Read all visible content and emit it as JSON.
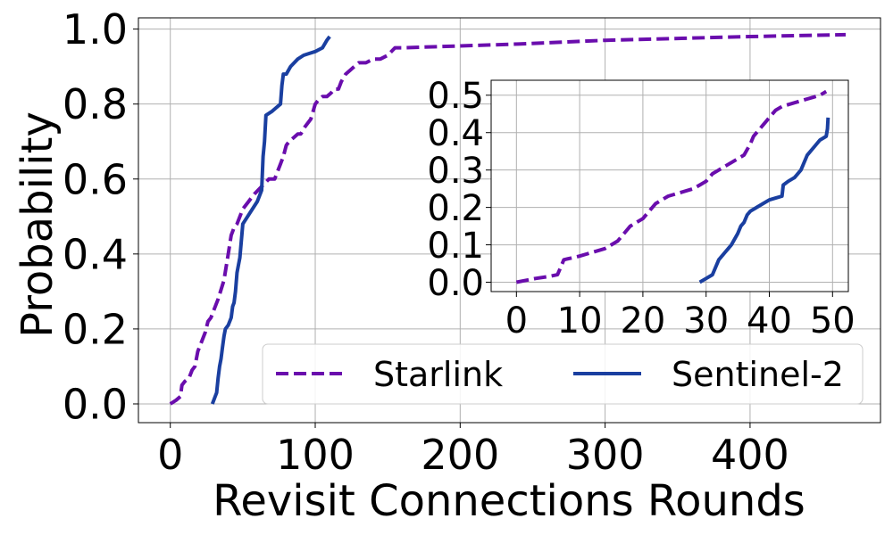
{
  "chart_data": [
    {
      "type": "line",
      "role": "main",
      "xlabel": "Revisit Connections Rounds",
      "ylabel": "Probability",
      "xlim": [
        -22,
        490
      ],
      "ylim": [
        -0.05,
        1.03
      ],
      "xticks": [
        0,
        100,
        200,
        300,
        400
      ],
      "yticks": [
        0.0,
        0.2,
        0.4,
        0.6,
        0.8,
        1.0
      ],
      "xtick_labels": [
        "0",
        "100",
        "200",
        "300",
        "400"
      ],
      "ytick_labels": [
        "0.0",
        "0.2",
        "0.4",
        "0.6",
        "0.8",
        "1.0"
      ],
      "grid": true,
      "legend_position": "lower-right",
      "series": [
        {
          "name": "Starlink",
          "color": "#6a0dad",
          "style": "dashed",
          "x": [
            0,
            4,
            7,
            8,
            10,
            13,
            15,
            17,
            19,
            21,
            24,
            26,
            28,
            30,
            33,
            37,
            40,
            42,
            44,
            46,
            50,
            54,
            58,
            63,
            68,
            72,
            74,
            76,
            78,
            80,
            82,
            85,
            88,
            90,
            93,
            97,
            100,
            102,
            105,
            108,
            111,
            113,
            116,
            118,
            121,
            124,
            127,
            130,
            135,
            140,
            145,
            150,
            155,
            160,
            200,
            240,
            300,
            400,
            466
          ],
          "y": [
            0.0,
            0.01,
            0.02,
            0.05,
            0.06,
            0.07,
            0.09,
            0.1,
            0.14,
            0.16,
            0.19,
            0.22,
            0.23,
            0.25,
            0.28,
            0.33,
            0.4,
            0.45,
            0.47,
            0.48,
            0.52,
            0.54,
            0.56,
            0.58,
            0.6,
            0.6,
            0.62,
            0.64,
            0.66,
            0.69,
            0.7,
            0.71,
            0.72,
            0.72,
            0.74,
            0.76,
            0.8,
            0.81,
            0.82,
            0.82,
            0.83,
            0.84,
            0.84,
            0.86,
            0.88,
            0.89,
            0.9,
            0.91,
            0.91,
            0.92,
            0.92,
            0.93,
            0.95,
            0.95,
            0.955,
            0.96,
            0.97,
            0.98,
            0.985
          ]
        },
        {
          "name": "Sentinel-2",
          "color": "#1a3fa0",
          "style": "solid",
          "x": [
            29,
            31,
            32,
            33,
            34,
            35,
            36,
            37,
            38,
            40,
            42,
            43,
            44,
            45,
            46,
            47,
            48,
            50,
            55,
            60,
            63,
            64,
            65,
            66,
            70,
            73,
            76,
            77,
            78,
            80,
            83,
            88,
            92,
            96,
            100,
            105,
            108,
            110
          ],
          "y": [
            0.0,
            0.02,
            0.03,
            0.07,
            0.1,
            0.12,
            0.15,
            0.18,
            0.2,
            0.21,
            0.23,
            0.26,
            0.27,
            0.3,
            0.35,
            0.37,
            0.39,
            0.48,
            0.51,
            0.54,
            0.57,
            0.66,
            0.7,
            0.77,
            0.78,
            0.79,
            0.8,
            0.85,
            0.88,
            0.88,
            0.9,
            0.92,
            0.93,
            0.935,
            0.94,
            0.95,
            0.97,
            0.98
          ]
        }
      ]
    },
    {
      "type": "line",
      "role": "inset",
      "xlim": [
        -4,
        52.5
      ],
      "ylim": [
        -0.025,
        0.54
      ],
      "xticks": [
        0,
        10,
        20,
        30,
        40,
        50
      ],
      "yticks": [
        0.0,
        0.1,
        0.2,
        0.3,
        0.4,
        0.5
      ],
      "xtick_labels": [
        "0",
        "10",
        "20",
        "30",
        "40",
        "50"
      ],
      "ytick_labels": [
        "0.0",
        "0.1",
        "0.2",
        "0.3",
        "0.4",
        "0.5"
      ],
      "grid": true,
      "series": [
        {
          "color": "#6a0dad",
          "style": "dashed",
          "x": [
            0,
            3,
            5,
            6.5,
            7,
            7.5,
            10,
            12,
            14,
            15,
            16,
            17,
            18,
            19,
            20,
            21,
            22,
            23,
            24,
            26,
            27,
            28,
            29,
            30,
            30.5,
            31,
            32,
            33,
            34,
            35,
            36,
            37,
            37.5,
            38,
            39,
            40,
            41,
            42,
            43,
            44,
            45,
            46,
            47,
            48,
            48.5,
            49
          ],
          "y": [
            0.0,
            0.01,
            0.015,
            0.02,
            0.04,
            0.06,
            0.07,
            0.08,
            0.09,
            0.1,
            0.11,
            0.13,
            0.15,
            0.16,
            0.17,
            0.19,
            0.21,
            0.22,
            0.23,
            0.24,
            0.245,
            0.25,
            0.26,
            0.27,
            0.28,
            0.29,
            0.3,
            0.31,
            0.32,
            0.33,
            0.34,
            0.37,
            0.39,
            0.4,
            0.42,
            0.44,
            0.46,
            0.47,
            0.475,
            0.48,
            0.485,
            0.49,
            0.495,
            0.5,
            0.505,
            0.51
          ]
        },
        {
          "color": "#1a3fa0",
          "style": "solid",
          "x": [
            29,
            30,
            31,
            32,
            32.5,
            33,
            33.5,
            34,
            35,
            35.5,
            36,
            36.5,
            37,
            38,
            39,
            40,
            41,
            42,
            42.2,
            43,
            44,
            45,
            46,
            47,
            48,
            49,
            49.2,
            49.3
          ],
          "y": [
            0.0,
            0.01,
            0.02,
            0.06,
            0.07,
            0.08,
            0.09,
            0.1,
            0.13,
            0.15,
            0.16,
            0.18,
            0.19,
            0.2,
            0.21,
            0.22,
            0.225,
            0.23,
            0.26,
            0.27,
            0.28,
            0.3,
            0.34,
            0.36,
            0.38,
            0.39,
            0.41,
            0.44
          ]
        }
      ]
    }
  ]
}
